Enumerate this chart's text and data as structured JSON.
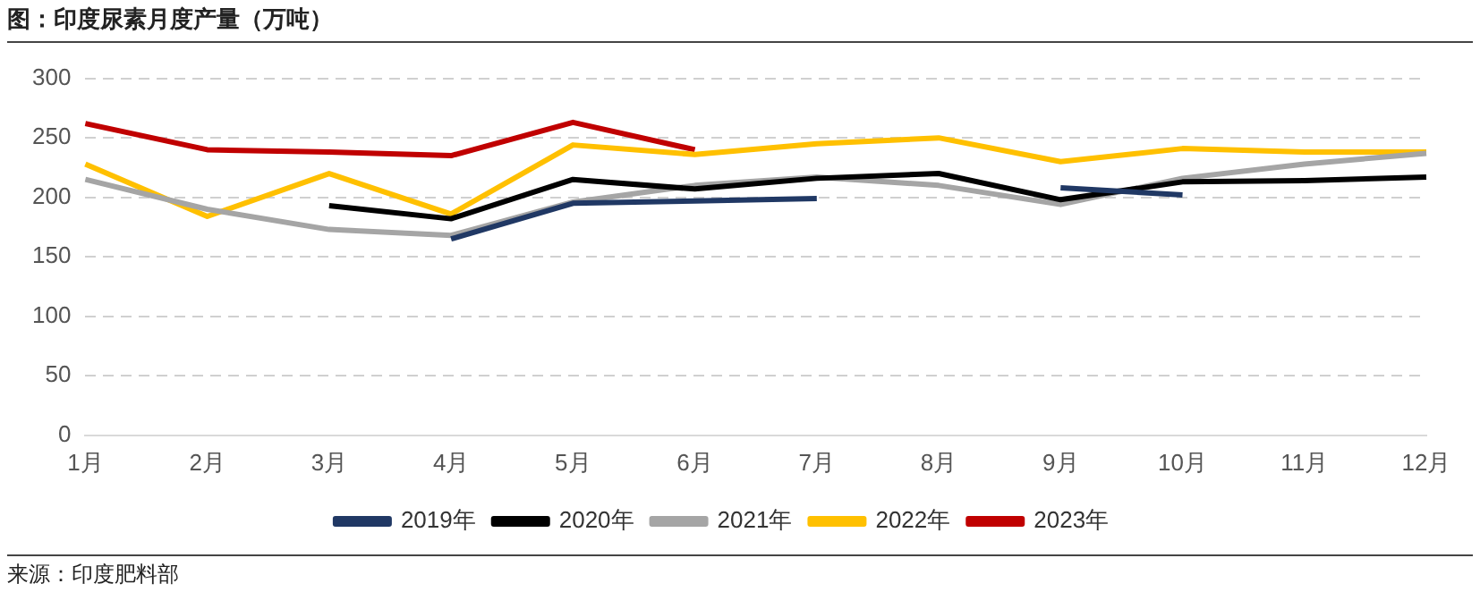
{
  "chart_data": {
    "type": "line",
    "title": "图：印度尿素月度产量（万吨）",
    "annotations": [
      "来源：印度肥料部"
    ],
    "categories": [
      "1月",
      "2月",
      "3月",
      "4月",
      "5月",
      "6月",
      "7月",
      "8月",
      "9月",
      "10月",
      "11月",
      "12月"
    ],
    "ylim": [
      0,
      300
    ],
    "yticks": [
      0,
      50,
      100,
      150,
      200,
      250,
      300
    ],
    "grid": "y",
    "legend": "bottom",
    "marker": "none",
    "series": [
      {
        "name": "2019年",
        "color": "#203864",
        "values": [
          null,
          null,
          null,
          165,
          195,
          197,
          199,
          null,
          208,
          202,
          null,
          null
        ]
      },
      {
        "name": "2020年",
        "color": "#000000",
        "values": [
          null,
          null,
          193,
          182,
          215,
          207,
          216,
          220,
          198,
          213,
          214,
          217
        ]
      },
      {
        "name": "2021年",
        "color": "#a5a5a5",
        "values": [
          215,
          190,
          173,
          168,
          196,
          210,
          217,
          210,
          194,
          216,
          228,
          237
        ]
      },
      {
        "name": "2022年",
        "color": "#ffc000",
        "values": [
          228,
          184,
          220,
          186,
          244,
          236,
          245,
          250,
          230,
          241,
          238,
          238
        ]
      },
      {
        "name": "2023年",
        "color": "#c00000",
        "values": [
          262,
          240,
          238,
          235,
          263,
          240,
          null,
          null,
          null,
          null,
          null,
          null
        ]
      }
    ]
  }
}
